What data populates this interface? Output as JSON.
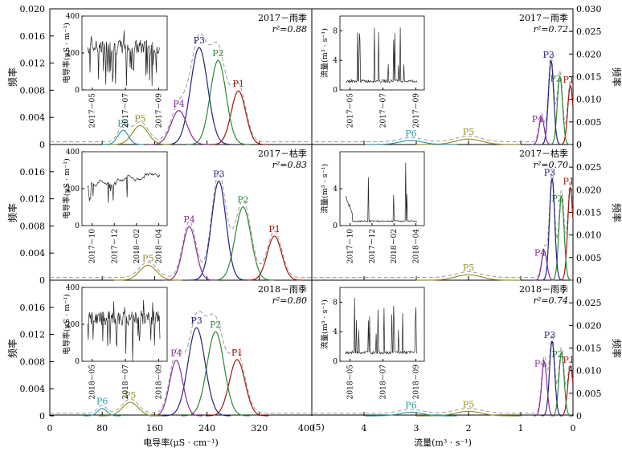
{
  "axis_texts": {
    "left_ylabel": "频率",
    "right_ylabel": "频率",
    "left_xlabel": "电导率(μS · cm⁻¹)",
    "right_xlabel": "流量(m³ · s⁻¹)",
    "inset_ylabel_left": "电导率(μS · m⁻¹)",
    "inset_ylabel_right": "流量(m³ · s⁻¹)",
    "corner_label": "(5)"
  },
  "colors": {
    "P1": "#a3150f",
    "P2": "#2a8a34",
    "P3": "#25237a",
    "P4": "#8a2a9a",
    "P5": "#9a9028",
    "P6": "#2a9aa6",
    "mixture": "#9a9a9a",
    "frame": "#000000"
  },
  "chart_data": [
    {
      "id": "l0",
      "type": "line",
      "title": "2017－雨季",
      "r2_label": "r²=0.88",
      "xlabel": "电导率(μS · cm⁻¹)",
      "ylabel": "频率",
      "xlim": [
        0,
        400
      ],
      "ylim": [
        0,
        0.02
      ],
      "xticks": [
        0,
        80,
        160,
        240,
        320,
        400
      ],
      "yticks": [
        0,
        0.004,
        0.008,
        0.012,
        0.016,
        0.02
      ],
      "ytick_labels": [
        "0",
        "0.004",
        "0.008",
        "0.012",
        "0.016",
        "0.020"
      ],
      "components": [
        {
          "name": "P1",
          "mean": 288,
          "sd": 11,
          "peak": 0.0079
        },
        {
          "name": "P2",
          "mean": 257,
          "sd": 12,
          "peak": 0.0124
        },
        {
          "name": "P3",
          "mean": 228,
          "sd": 13,
          "peak": 0.0143
        },
        {
          "name": "P4",
          "mean": 197,
          "sd": 12,
          "peak": 0.005
        },
        {
          "name": "P5",
          "mean": 138,
          "sd": 12,
          "peak": 0.0028
        },
        {
          "name": "P6",
          "mean": 112,
          "sd": 8,
          "peak": 0.0021
        }
      ],
      "inset": {
        "ylim": [
          0,
          400
        ],
        "yticks": [
          0,
          200,
          400
        ],
        "xticks": [
          "2017－05",
          "2017－07",
          "2017－09"
        ]
      }
    },
    {
      "id": "l1",
      "type": "line",
      "title": "2017－枯季",
      "r2_label": "r²=0.83",
      "xlabel": "电导率(μS · cm⁻¹)",
      "ylabel": "频率",
      "xlim": [
        0,
        400
      ],
      "ylim": [
        0,
        0.02
      ],
      "xticks": [
        0,
        80,
        160,
        240,
        320,
        400
      ],
      "yticks": [
        0,
        0.004,
        0.008,
        0.012,
        0.016
      ],
      "ytick_labels": [
        "0",
        "0.004",
        "0.008",
        "0.012",
        "0.016"
      ],
      "components": [
        {
          "name": "P1",
          "mean": 343,
          "sd": 11,
          "peak": 0.0065
        },
        {
          "name": "P2",
          "mean": 295,
          "sd": 12,
          "peak": 0.0108
        },
        {
          "name": "P3",
          "mean": 258,
          "sd": 11,
          "peak": 0.0146
        },
        {
          "name": "P4",
          "mean": 213,
          "sd": 10,
          "peak": 0.0079
        },
        {
          "name": "P5",
          "mean": 150,
          "sd": 13,
          "peak": 0.0022
        }
      ],
      "inset": {
        "ylim": [
          0,
          400
        ],
        "yticks": [
          0,
          200,
          400
        ],
        "xticks": [
          "2017－10",
          "2017－12",
          "2018－02",
          "2018－04"
        ]
      }
    },
    {
      "id": "l2",
      "type": "line",
      "title": "2018－雨季",
      "r2_label": "r²=0.80",
      "xlabel": "电导率(μS · cm⁻¹)",
      "ylabel": "频率",
      "xlim": [
        0,
        400
      ],
      "ylim": [
        0,
        0.02
      ],
      "xticks": [
        0,
        80,
        160,
        240,
        320,
        400
      ],
      "yticks": [
        0,
        0.004,
        0.008,
        0.012,
        0.016
      ],
      "ytick_labels": [
        "0",
        "0.004",
        "0.008",
        "0.012",
        "0.016"
      ],
      "components": [
        {
          "name": "P1",
          "mean": 286,
          "sd": 12,
          "peak": 0.0083
        },
        {
          "name": "P2",
          "mean": 253,
          "sd": 13,
          "peak": 0.0124
        },
        {
          "name": "P3",
          "mean": 224,
          "sd": 13,
          "peak": 0.013
        },
        {
          "name": "P4",
          "mean": 193,
          "sd": 10,
          "peak": 0.0082
        },
        {
          "name": "P5",
          "mean": 123,
          "sd": 12,
          "peak": 0.002
        },
        {
          "name": "P6",
          "mean": 80,
          "sd": 7,
          "peak": 0.0011
        }
      ],
      "inset": {
        "ylim": [
          0,
          400
        ],
        "yticks": [
          0,
          200,
          400
        ],
        "xticks": [
          "2018－05",
          "2018－07",
          "2018－09"
        ]
      }
    },
    {
      "id": "r0",
      "type": "line",
      "title": "2017－雨季",
      "r2_label": "r²=0.72",
      "xlabel": "流量(m³ · s⁻¹)",
      "ylabel": "频率",
      "xlim": [
        5,
        0
      ],
      "ylim": [
        0,
        0.03
      ],
      "xticks": [
        4,
        3,
        2,
        1,
        0
      ],
      "yticks": [
        0,
        0.005,
        0.01,
        0.015,
        0.02,
        0.025,
        0.03
      ],
      "ytick_labels": [
        "0",
        "0.005",
        "0.010",
        "0.015",
        "0.020",
        "0.025",
        "0.030"
      ],
      "components": [
        {
          "name": "P1",
          "mean": 0.05,
          "sd": 0.05,
          "peak": 0.013
        },
        {
          "name": "P2",
          "mean": 0.25,
          "sd": 0.05,
          "peak": 0.015
        },
        {
          "name": "P3",
          "mean": 0.42,
          "sd": 0.05,
          "peak": 0.0185
        },
        {
          "name": "P4",
          "mean": 0.6,
          "sd": 0.05,
          "peak": 0.006
        },
        {
          "name": "P5",
          "mean": 2.0,
          "sd": 0.25,
          "peak": 0.0012
        },
        {
          "name": "P6",
          "mean": 3.1,
          "sd": 0.22,
          "peak": 0.0009
        }
      ],
      "inset": {
        "ylim": [
          0,
          10
        ],
        "yticks": [
          0,
          4,
          8
        ],
        "xticks": [
          "2017－05",
          "2017－07",
          "2017－09"
        ]
      }
    },
    {
      "id": "r1",
      "type": "line",
      "title": "2017－枯季",
      "r2_label": "r²=0.70",
      "xlabel": "流量(m³ · s⁻¹)",
      "ylabel": "频率",
      "xlim": [
        5,
        0
      ],
      "ylim": [
        0,
        0.03
      ],
      "xticks": [
        4,
        3,
        2,
        1,
        0
      ],
      "yticks": [
        0,
        0.005,
        0.01,
        0.015,
        0.02,
        0.025
      ],
      "ytick_labels": [
        "0",
        "0.005",
        "0.010",
        "0.015",
        "0.020",
        "0.025"
      ],
      "components": [
        {
          "name": "P1",
          "mean": 0.05,
          "sd": 0.05,
          "peak": 0.0205
        },
        {
          "name": "P2",
          "mean": 0.22,
          "sd": 0.05,
          "peak": 0.0185
        },
        {
          "name": "P3",
          "mean": 0.4,
          "sd": 0.05,
          "peak": 0.0225
        },
        {
          "name": "P4",
          "mean": 0.55,
          "sd": 0.05,
          "peak": 0.0065
        },
        {
          "name": "P5",
          "mean": 2.0,
          "sd": 0.25,
          "peak": 0.0012
        }
      ],
      "inset": {
        "ylim": [
          0,
          8
        ],
        "yticks": [
          0,
          4
        ],
        "xticks": [
          "2017－10",
          "2017－12",
          "2018－02",
          "2018－04"
        ]
      }
    },
    {
      "id": "r2",
      "type": "line",
      "title": "2018－雨季",
      "r2_label": "r²=0.74",
      "xlabel": "流量(m³ · s⁻¹)",
      "ylabel": "频率",
      "xlim": [
        5,
        0
      ],
      "ylim": [
        0,
        0.03
      ],
      "xticks": [
        4,
        3,
        2,
        1,
        0
      ],
      "yticks": [
        0,
        0.005,
        0.01,
        0.015,
        0.02,
        0.025
      ],
      "ytick_labels": [
        "0",
        "0.005",
        "0.010",
        "0.015",
        "0.020",
        "0.025"
      ],
      "components": [
        {
          "name": "P1",
          "mean": 0.05,
          "sd": 0.05,
          "peak": 0.011
        },
        {
          "name": "P2",
          "mean": 0.22,
          "sd": 0.05,
          "peak": 0.014
        },
        {
          "name": "P3",
          "mean": 0.4,
          "sd": 0.05,
          "peak": 0.0165
        },
        {
          "name": "P4",
          "mean": 0.55,
          "sd": 0.05,
          "peak": 0.012
        },
        {
          "name": "P5",
          "mean": 2.0,
          "sd": 0.25,
          "peak": 0.001
        },
        {
          "name": "P6",
          "mean": 3.1,
          "sd": 0.22,
          "peak": 0.0008
        }
      ],
      "inset": {
        "ylim": [
          0,
          10
        ],
        "yticks": [
          0,
          4,
          8
        ],
        "xticks": [
          "2018－05",
          "2018－07",
          "2018－09"
        ]
      }
    }
  ]
}
